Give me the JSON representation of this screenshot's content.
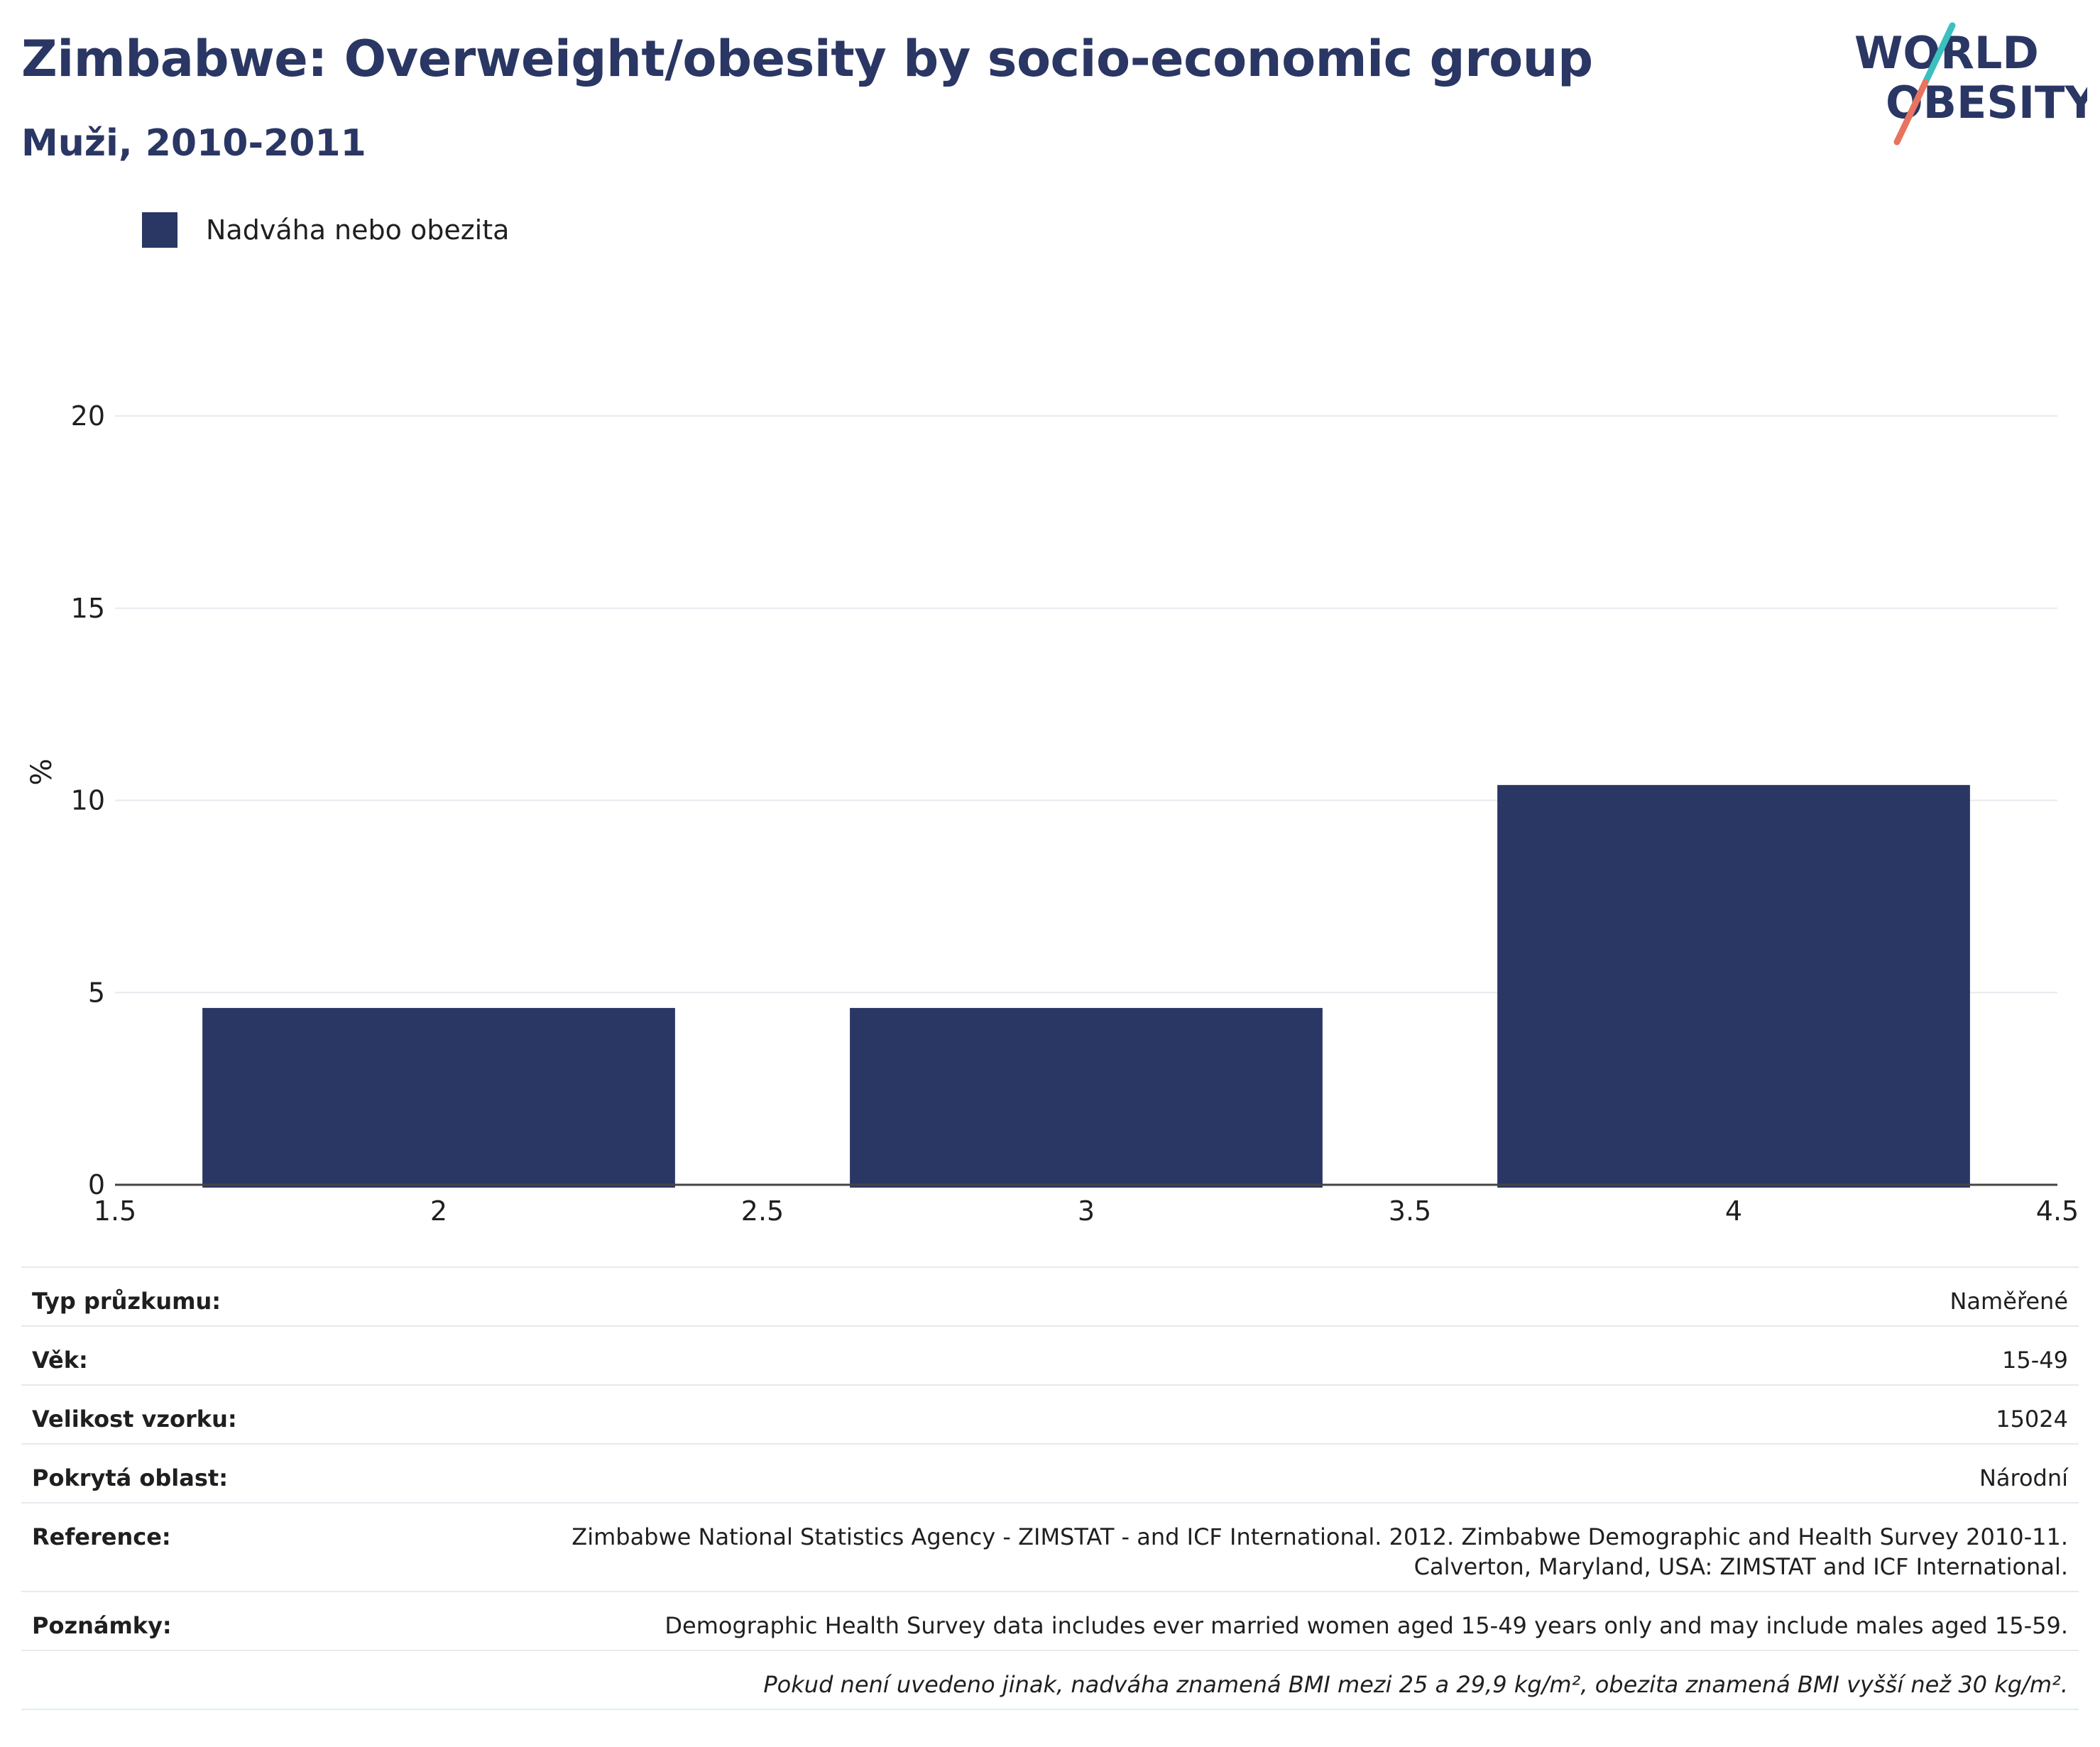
{
  "header": {
    "title": "Zimbabwe: Overweight/obesity by socio-economic group",
    "subtitle": "Muži, 2010-2011"
  },
  "logo": {
    "line1": "WORLD",
    "line2": "OBESITY"
  },
  "colors": {
    "bar": "#2a3663",
    "title": "#2a3663",
    "logo_teal": "#3bbfbf",
    "logo_coral": "#e8735f",
    "grid": "#e6eaee"
  },
  "chart_data": {
    "type": "bar",
    "legend": [
      "Nadváha nebo obezita"
    ],
    "legend_position": "top-left",
    "ylabel": "%",
    "xlabel": "",
    "x": [
      2,
      3,
      4
    ],
    "series": [
      {
        "name": "Nadváha nebo obezita",
        "values": [
          4.6,
          4.6,
          10.4
        ]
      }
    ],
    "xlim": [
      1.5,
      4.5
    ],
    "ylim": [
      0,
      20
    ],
    "xticks": [
      "1.5",
      "2",
      "2.5",
      "3",
      "3.5",
      "4",
      "4.5"
    ],
    "yticks": [
      "0",
      "5",
      "10",
      "15",
      "20"
    ],
    "grid": true
  },
  "info": [
    {
      "label": "Typ průzkumu:",
      "value": "Naměřené"
    },
    {
      "label": "Věk:",
      "value": "15-49"
    },
    {
      "label": "Velikost vzorku:",
      "value": "15024"
    },
    {
      "label": "Pokrytá oblast:",
      "value": "Národní"
    },
    {
      "label": "Reference:",
      "value_line1": "Zimbabwe National Statistics Agency - ZIMSTAT - and ICF International. 2012. Zimbabwe Demographic and Health Survey 2010-11.",
      "value_line2": "Calverton, Maryland, USA: ZIMSTAT and ICF International."
    },
    {
      "label": "Poznámky:",
      "value": "Demographic Health Survey data includes ever married women aged 15-49 years only and may include males aged 15-59."
    }
  ],
  "footnote": "Pokud není uvedeno jinak, nadváha znamená BMI mezi 25 a 29,9 kg/m², obezita znamená BMI vyšší než 30 kg/m²."
}
